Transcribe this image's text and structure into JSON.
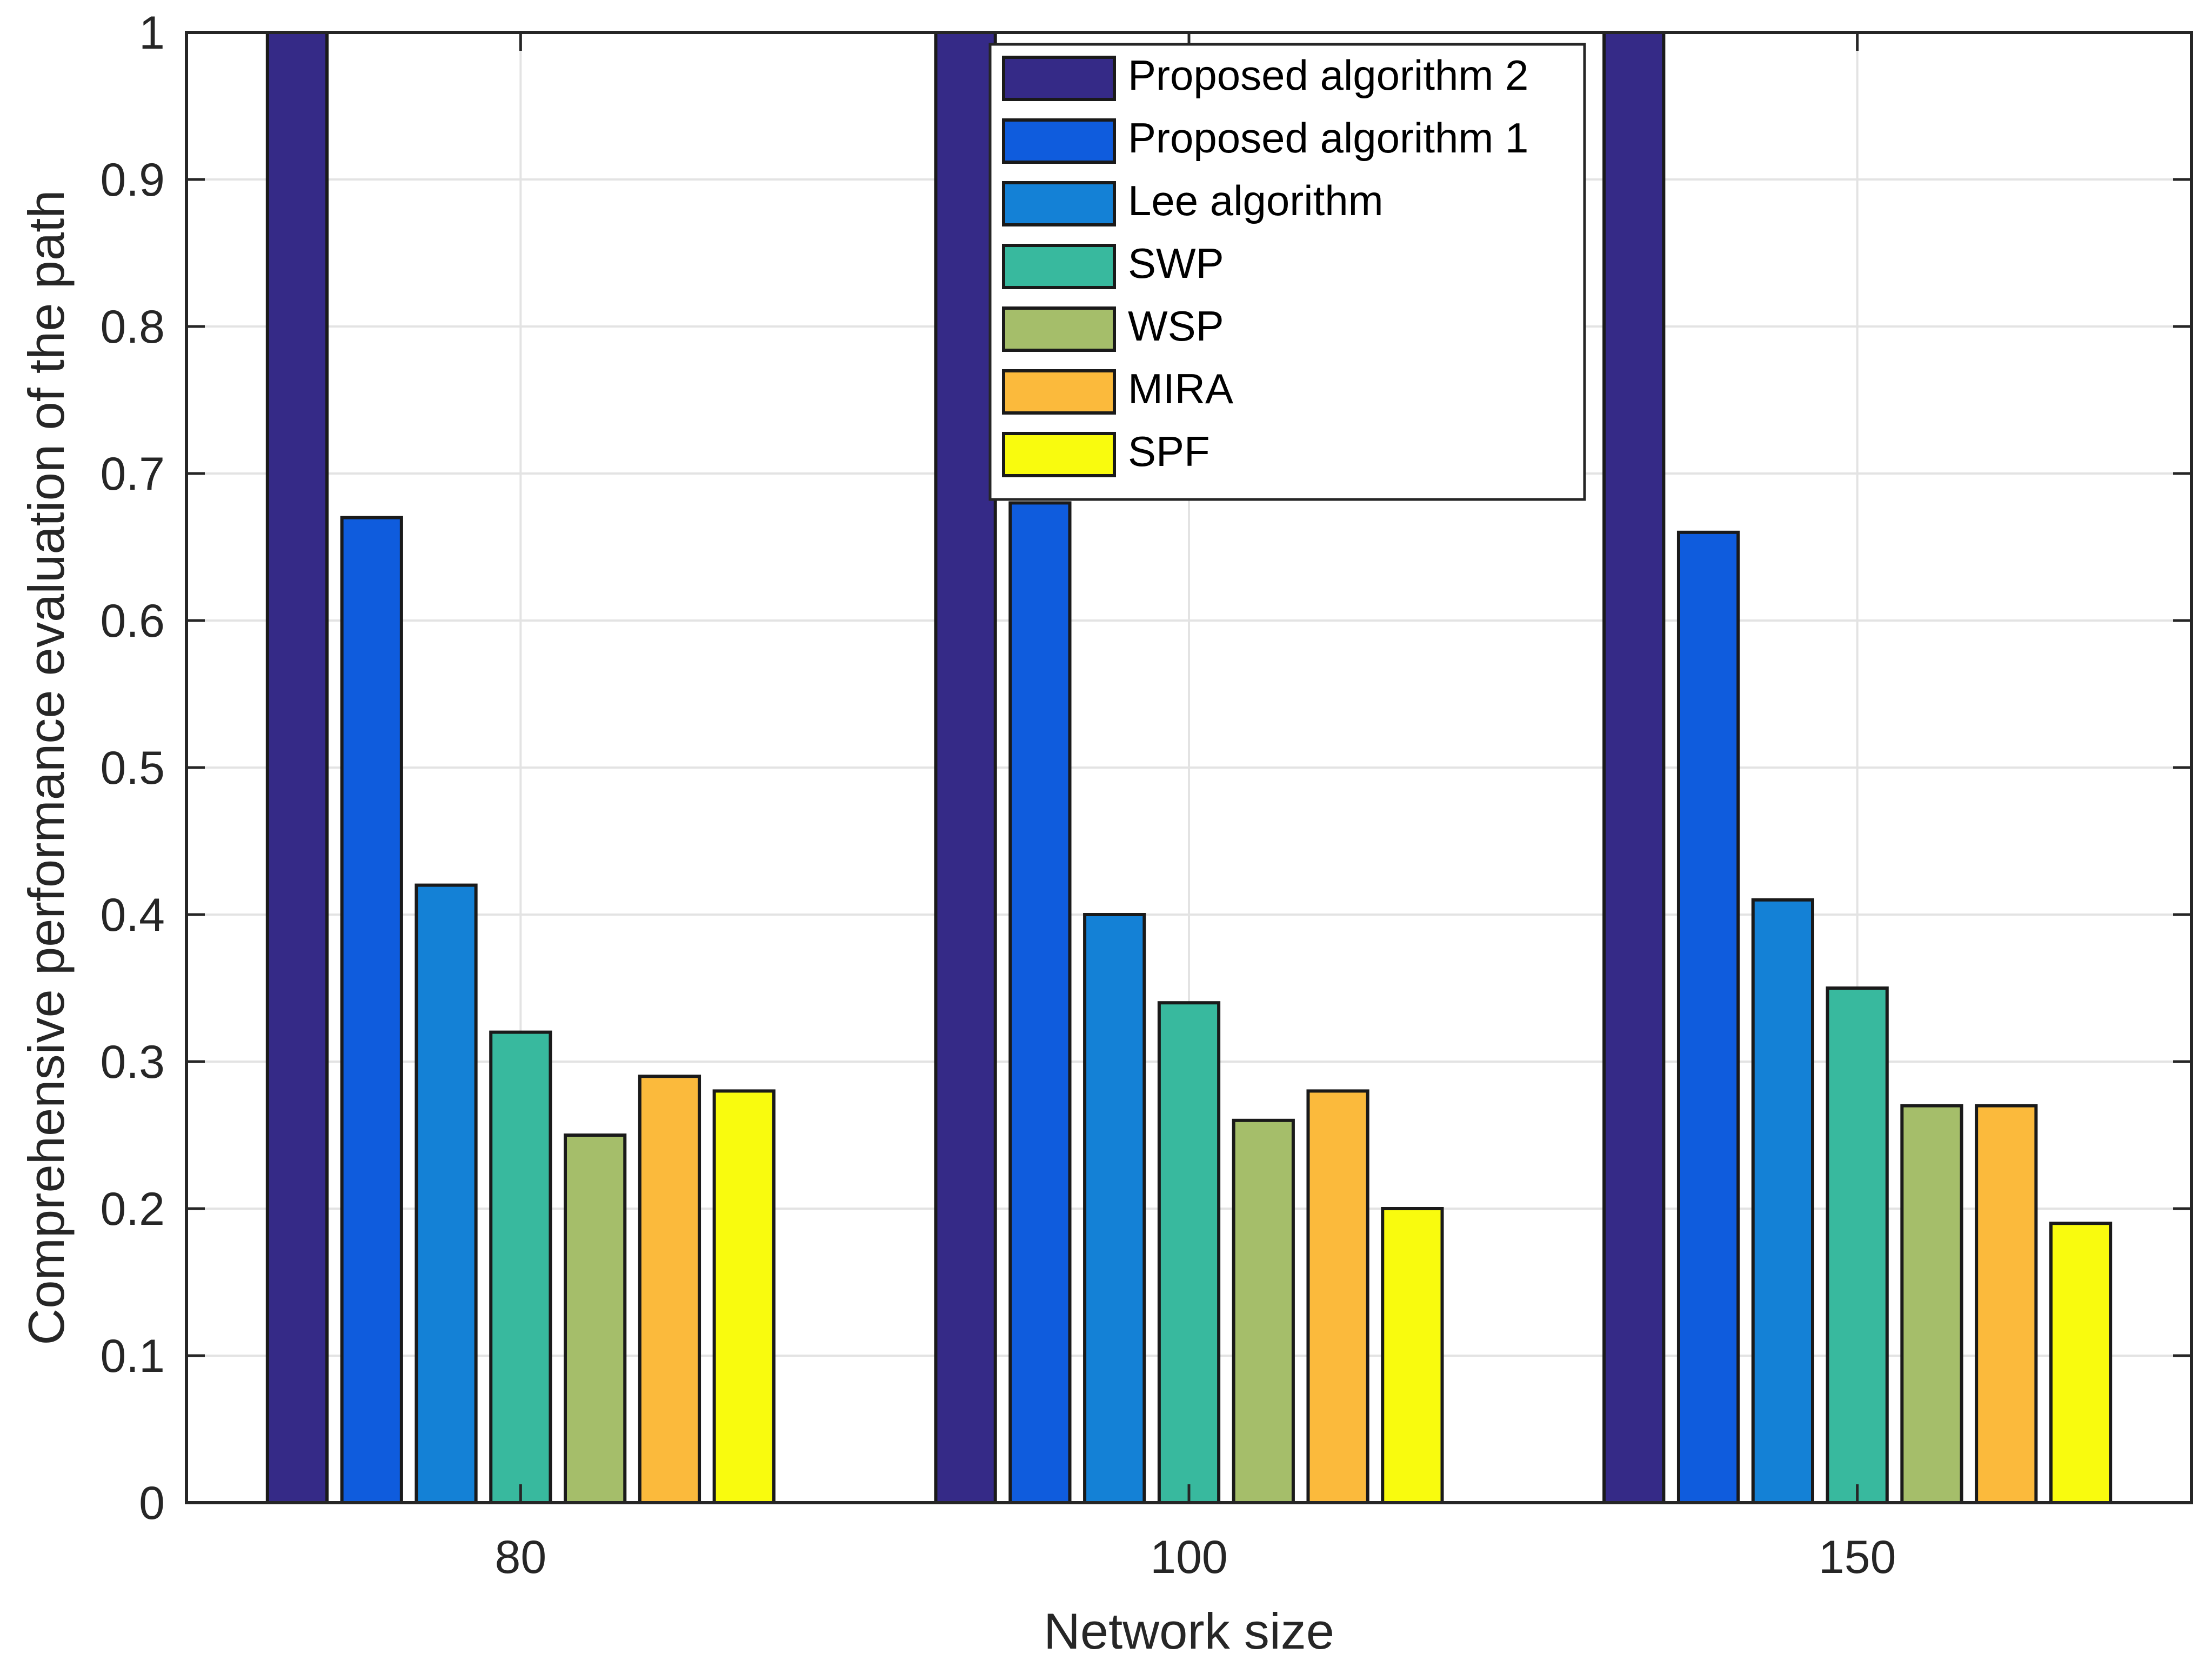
{
  "chart_data": {
    "type": "bar",
    "title": "",
    "xlabel": "Network size",
    "ylabel": "Comprehensive performance evaluation of the path",
    "categories": [
      "80",
      "100",
      "150"
    ],
    "ylim": [
      0,
      1
    ],
    "yticks": [
      0,
      0.1,
      0.2,
      0.3,
      0.4,
      0.5,
      0.6,
      0.7,
      0.8,
      0.9,
      1
    ],
    "ytick_labels": [
      "0",
      "0.1",
      "0.2",
      "0.3",
      "0.4",
      "0.5",
      "0.6",
      "0.7",
      "0.8",
      "0.9",
      "1"
    ],
    "grid": true,
    "legend_position": "top-center",
    "series": [
      {
        "name": "Proposed algorithm 2",
        "color": "#352a87",
        "values": [
          1.0,
          1.0,
          1.0
        ]
      },
      {
        "name": "Proposed algorithm 1",
        "color": "#0f5cdd",
        "values": [
          0.67,
          0.68,
          0.66
        ]
      },
      {
        "name": "Lee algorithm",
        "color": "#1481d6",
        "values": [
          0.42,
          0.4,
          0.41
        ]
      },
      {
        "name": "SWP",
        "color": "#38b99e",
        "values": [
          0.32,
          0.34,
          0.35
        ]
      },
      {
        "name": "WSP",
        "color": "#a5be6a",
        "values": [
          0.25,
          0.26,
          0.27
        ]
      },
      {
        "name": "MIRA",
        "color": "#fbba3c",
        "values": [
          0.29,
          0.28,
          0.27
        ]
      },
      {
        "name": "SPF",
        "color": "#f9fb0e",
        "values": [
          0.28,
          0.2,
          0.19
        ]
      }
    ]
  }
}
